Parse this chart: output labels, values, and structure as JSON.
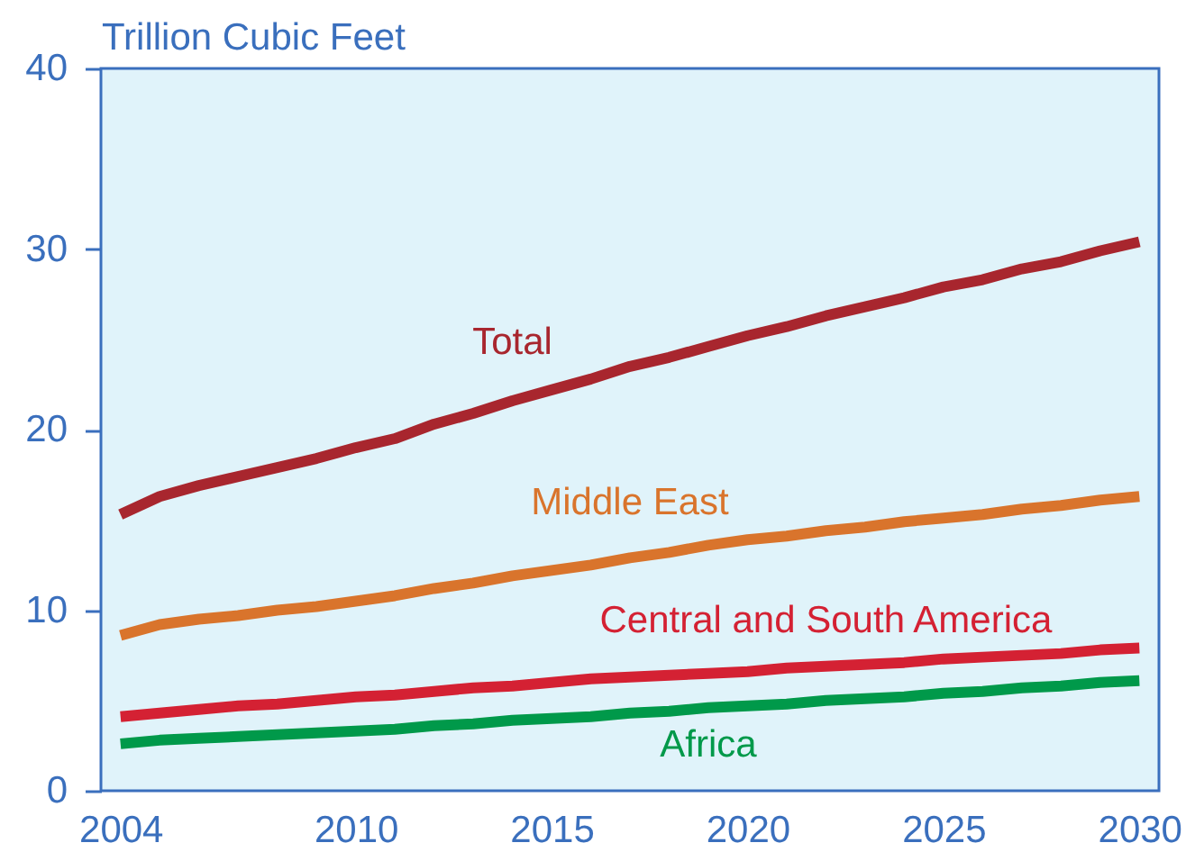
{
  "chart_data": {
    "type": "line",
    "ylabel": "Trillion Cubic Feet",
    "x": [
      2004,
      2005,
      2006,
      2007,
      2008,
      2009,
      2010,
      2011,
      2012,
      2013,
      2014,
      2015,
      2016,
      2017,
      2018,
      2019,
      2020,
      2021,
      2022,
      2023,
      2024,
      2025,
      2026,
      2027,
      2028,
      2029,
      2030
    ],
    "series": [
      {
        "name": "Total",
        "color": "#a8262e",
        "values": [
          15.3,
          16.3,
          16.9,
          17.4,
          17.9,
          18.4,
          19.0,
          19.5,
          20.3,
          20.9,
          21.6,
          22.2,
          22.8,
          23.5,
          24.0,
          24.6,
          25.2,
          25.7,
          26.3,
          26.8,
          27.3,
          27.9,
          28.3,
          28.9,
          29.3,
          29.9,
          30.4
        ]
      },
      {
        "name": "Middle East",
        "color": "#d9742c",
        "values": [
          8.6,
          9.2,
          9.5,
          9.7,
          10.0,
          10.2,
          10.5,
          10.8,
          11.2,
          11.5,
          11.9,
          12.2,
          12.5,
          12.9,
          13.2,
          13.6,
          13.9,
          14.1,
          14.4,
          14.6,
          14.9,
          15.1,
          15.3,
          15.6,
          15.8,
          16.1,
          16.3
        ]
      },
      {
        "name": "Central and South America",
        "color": "#d42133",
        "values": [
          4.1,
          4.3,
          4.5,
          4.7,
          4.8,
          5.0,
          5.2,
          5.3,
          5.5,
          5.7,
          5.8,
          6.0,
          6.2,
          6.3,
          6.4,
          6.5,
          6.6,
          6.8,
          6.9,
          7.0,
          7.1,
          7.3,
          7.4,
          7.5,
          7.6,
          7.8,
          7.9
        ]
      },
      {
        "name": "Africa",
        "color": "#00994a",
        "values": [
          2.6,
          2.8,
          2.9,
          3.0,
          3.1,
          3.2,
          3.3,
          3.4,
          3.6,
          3.7,
          3.9,
          4.0,
          4.1,
          4.3,
          4.4,
          4.6,
          4.7,
          4.8,
          5.0,
          5.1,
          5.2,
          5.4,
          5.5,
          5.7,
          5.8,
          6.0,
          6.1
        ]
      }
    ],
    "xlim": [
      2003.5,
      2030.5
    ],
    "ylim": [
      0,
      40
    ],
    "xticks": [
      2004,
      2010,
      2015,
      2020,
      2025,
      2030
    ],
    "yticks": [
      0,
      10,
      20,
      30,
      40
    ],
    "grid": false,
    "legend": false
  }
}
